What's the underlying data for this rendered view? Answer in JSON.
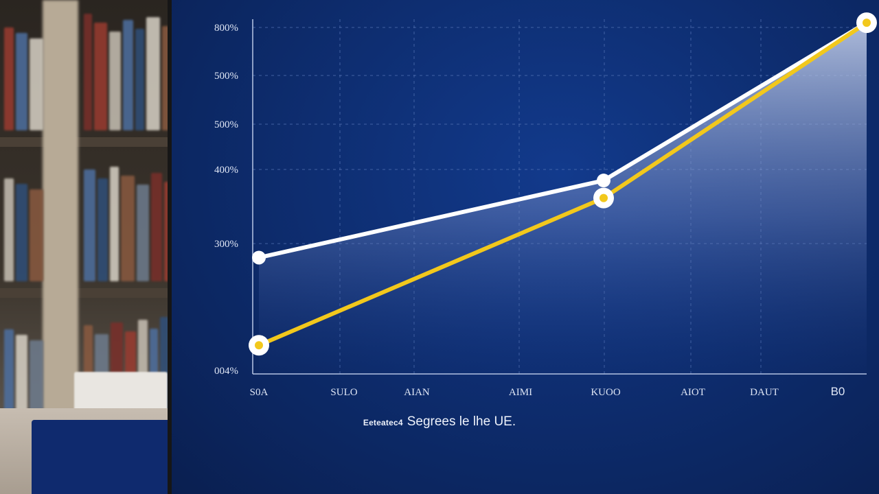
{
  "chart_data": {
    "type": "area",
    "caption_prefix": "Eeteatec4",
    "caption": "Segrees le lhe UE.",
    "categories": [
      "S0A",
      "SULO",
      "AIAN",
      "AIMI",
      "KUOO",
      "AIOT",
      "DAUT",
      "B0"
    ],
    "y_tick_labels": [
      "004%",
      "300%",
      "400%",
      "500%",
      "500%",
      "800%"
    ],
    "ylim": [
      0,
      100
    ],
    "grid": true,
    "series": [
      {
        "color": "#ffffff",
        "points": [
          {
            "x": "S0A",
            "y": 32
          },
          {
            "x": "KUOO",
            "y": 54
          },
          {
            "x": "B0",
            "y": 99
          }
        ]
      },
      {
        "color": "#f2c81c",
        "points": [
          {
            "x": "S0A",
            "y": 7
          },
          {
            "x": "KUOO",
            "y": 49
          },
          {
            "x": "B0",
            "y": 99
          }
        ]
      }
    ],
    "highlighted_points": [
      {
        "series": 0,
        "x": "S0A"
      },
      {
        "series": 0,
        "x": "KUOO"
      },
      {
        "series": 1,
        "x": "S0A"
      },
      {
        "series": 1,
        "x": "KUOO"
      },
      {
        "series": 1,
        "x": "B0"
      }
    ]
  },
  "colors": {
    "screen_background": "#0d2b6b",
    "grid": "#5877b8",
    "axis": "#b9c7e6",
    "text": "#dfe6f5"
  }
}
